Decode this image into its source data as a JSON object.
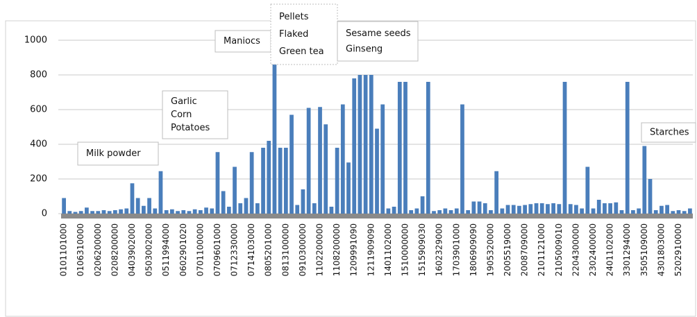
{
  "chart_data": {
    "type": "bar",
    "color": "#4a7ebb",
    "grid": true,
    "ylim": [
      0,
      1000
    ],
    "yticks": [
      0,
      200,
      400,
      600,
      800,
      1000
    ],
    "categories": [
      "0101101000",
      null,
      null,
      "0106310000",
      null,
      null,
      "0206200000",
      null,
      null,
      "0208200000",
      null,
      null,
      "0403902000",
      null,
      null,
      "0503002000",
      null,
      null,
      "0511994000",
      null,
      null,
      "0602901020",
      null,
      null,
      "0701100000",
      null,
      null,
      "0709601000",
      null,
      null,
      "0712330000",
      null,
      null,
      "0714103000",
      null,
      null,
      "0805201000",
      null,
      null,
      "0813100000",
      null,
      null,
      "0910300000",
      null,
      null,
      "1102200000",
      null,
      null,
      "1108200000",
      null,
      null,
      "1209991090",
      null,
      null,
      "1211909090",
      null,
      null,
      "1401102000",
      null,
      null,
      "1510000000",
      null,
      null,
      "1515909030",
      null,
      null,
      "1602329000",
      null,
      null,
      "1703901000",
      null,
      null,
      "1806909090",
      null,
      null,
      "1905320000",
      null,
      null,
      "2005519000",
      null,
      null,
      "2008709000",
      null,
      null,
      "2101121000",
      null,
      null,
      "2105009010",
      null,
      null,
      "2204300000",
      null,
      null,
      "2302400000",
      null,
      null,
      "2401102000",
      null,
      null,
      "3301294000",
      null,
      null,
      "3505109000",
      null,
      null,
      "4301803000",
      null,
      null,
      "5202910000",
      null,
      null
    ],
    "values": [
      90,
      15,
      10,
      15,
      35,
      15,
      15,
      20,
      15,
      20,
      25,
      30,
      175,
      90,
      45,
      90,
      30,
      245,
      20,
      25,
      15,
      20,
      15,
      25,
      20,
      35,
      30,
      355,
      130,
      40,
      270,
      60,
      90,
      355,
      60,
      380,
      420,
      890,
      380,
      380,
      570,
      50,
      140,
      610,
      60,
      615,
      515,
      40,
      380,
      630,
      295,
      780,
      800,
      800,
      800,
      490,
      630,
      30,
      40,
      760,
      760,
      20,
      30,
      100,
      760,
      15,
      20,
      30,
      20,
      30,
      630,
      20,
      70,
      70,
      60,
      20,
      245,
      30,
      50,
      50,
      45,
      50,
      55,
      60,
      60,
      55,
      60,
      55,
      760,
      55,
      50,
      30,
      270,
      30,
      80,
      60,
      60,
      65,
      20,
      760,
      20,
      30,
      390,
      200,
      20,
      45,
      50,
      15,
      20,
      15,
      30
    ],
    "annotations": [
      {
        "lines": [
          "Milk powder"
        ]
      },
      {
        "lines": [
          "Garlic",
          "Corn",
          "Potatoes"
        ]
      },
      {
        "lines": [
          "Maniocs"
        ]
      },
      {
        "lines": [
          "Pellets",
          "Flaked",
          "Green tea"
        ]
      },
      {
        "lines": [
          "Sesame seeds",
          "Ginseng"
        ]
      },
      {
        "lines": [
          "Starches"
        ]
      }
    ]
  }
}
